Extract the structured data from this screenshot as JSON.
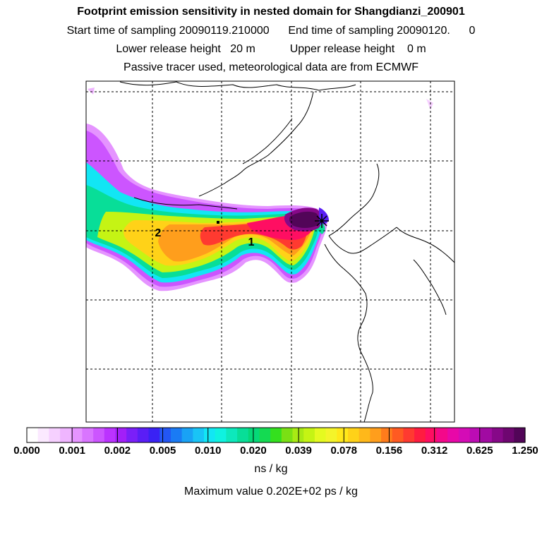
{
  "header": {
    "title": "Footprint emission sensitivity in nested domain for Shangdianzi_200901",
    "start_label": "Start time of sampling 20090119.210000",
    "end_label": "End time of sampling 20090120.",
    "end_value": "0",
    "lower_label": "Lower release height",
    "lower_value": "20 m",
    "upper_label": "Upper release height",
    "upper_value": "0 m",
    "info": "Passive tracer used, meteorological data are from ECMWF"
  },
  "map": {
    "markers": [
      {
        "label": "1",
        "name": "release-point-1"
      },
      {
        "label": "2",
        "name": "release-point-2"
      }
    ]
  },
  "colorbar": {
    "tick_labels": [
      "0.000",
      "0.001",
      "0.002",
      "0.005",
      "0.010",
      "0.020",
      "0.039",
      "0.078",
      "0.156",
      "0.312",
      "0.625",
      "1.250"
    ],
    "colors": [
      "#ffffff",
      "#fbe9ff",
      "#f6d0ff",
      "#efb5ff",
      "#e594ff",
      "#d975ff",
      "#cc55ff",
      "#bb33ff",
      "#a21ff8",
      "#7a1ff8",
      "#5a1ef6",
      "#3a22f4",
      "#2356f4",
      "#1a7bf4",
      "#19a2f5",
      "#19c4f6",
      "#12e6f4",
      "#0ff2e0",
      "#0de8bc",
      "#08de98",
      "#05d878",
      "#14da52",
      "#34e01e",
      "#7ae014",
      "#a8ea14",
      "#c5f414",
      "#e5fa20",
      "#f4f42a",
      "#ffe81a",
      "#ffd218",
      "#ffb81a",
      "#ff9e1c",
      "#ff7c1c",
      "#ff5a22",
      "#ff3a30",
      "#ff1c40",
      "#ff0e62",
      "#f4088a",
      "#e808a8",
      "#d40cb6",
      "#bc0cb4",
      "#a10aa2",
      "#860888",
      "#6e0670",
      "#520558"
    ],
    "units": "ns / kg",
    "max_label": "Maximum value  0.202E+02 ps / kg"
  }
}
